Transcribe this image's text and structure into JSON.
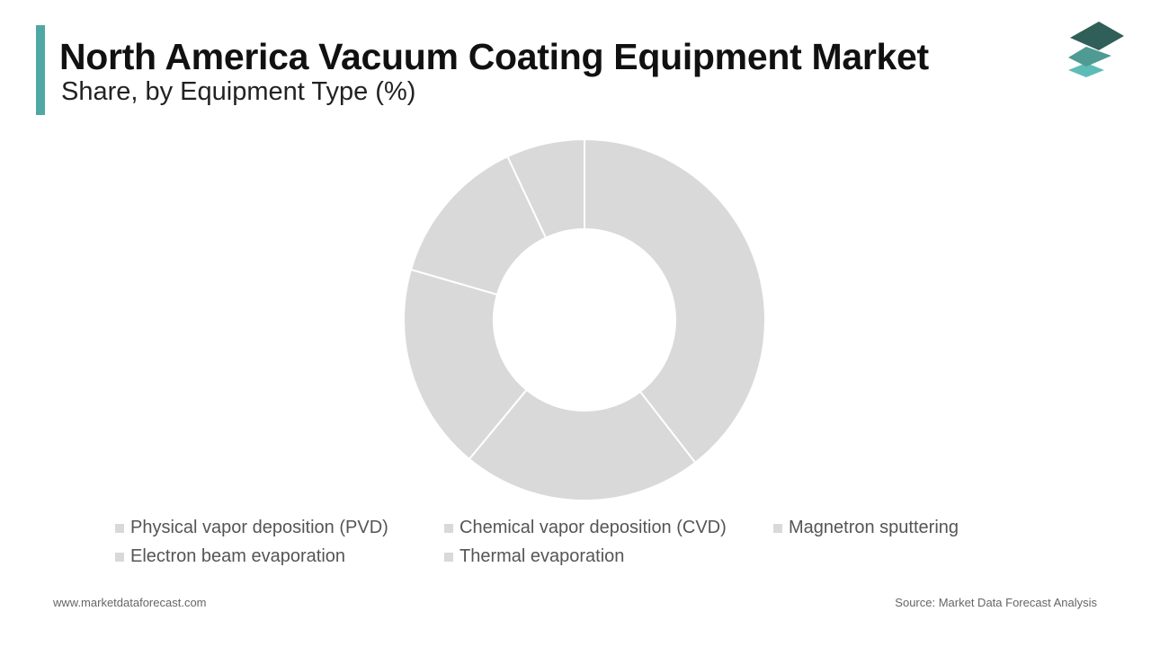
{
  "header": {
    "title": "North America Vacuum Coating Equipment Market",
    "subtitle": "Share, by Equipment Type (%)"
  },
  "colors": {
    "accent": "#4fa8a4",
    "slice_fill": "#d9d9d9",
    "slice_border": "#ffffff",
    "logo_dark": "#2f5f58",
    "logo_mid": "#4f9a93",
    "logo_light": "#5dbdb6"
  },
  "logo": {
    "icon": "stacked-layers-icon"
  },
  "chart_data": {
    "type": "pie",
    "donut": true,
    "categories": [
      "Physical vapor deposition (PVD)",
      "Chemical vapor deposition (CVD)",
      "Magnetron sputtering",
      "Electron beam evaporation",
      "Thermal evaporation"
    ],
    "values": [
      39.5,
      21.5,
      18.5,
      13.5,
      7.0
    ],
    "legend_position": "bottom"
  },
  "footer": {
    "website": "www.marketdataforecast.com",
    "source": "Source: Market Data Forecast Analysis"
  }
}
